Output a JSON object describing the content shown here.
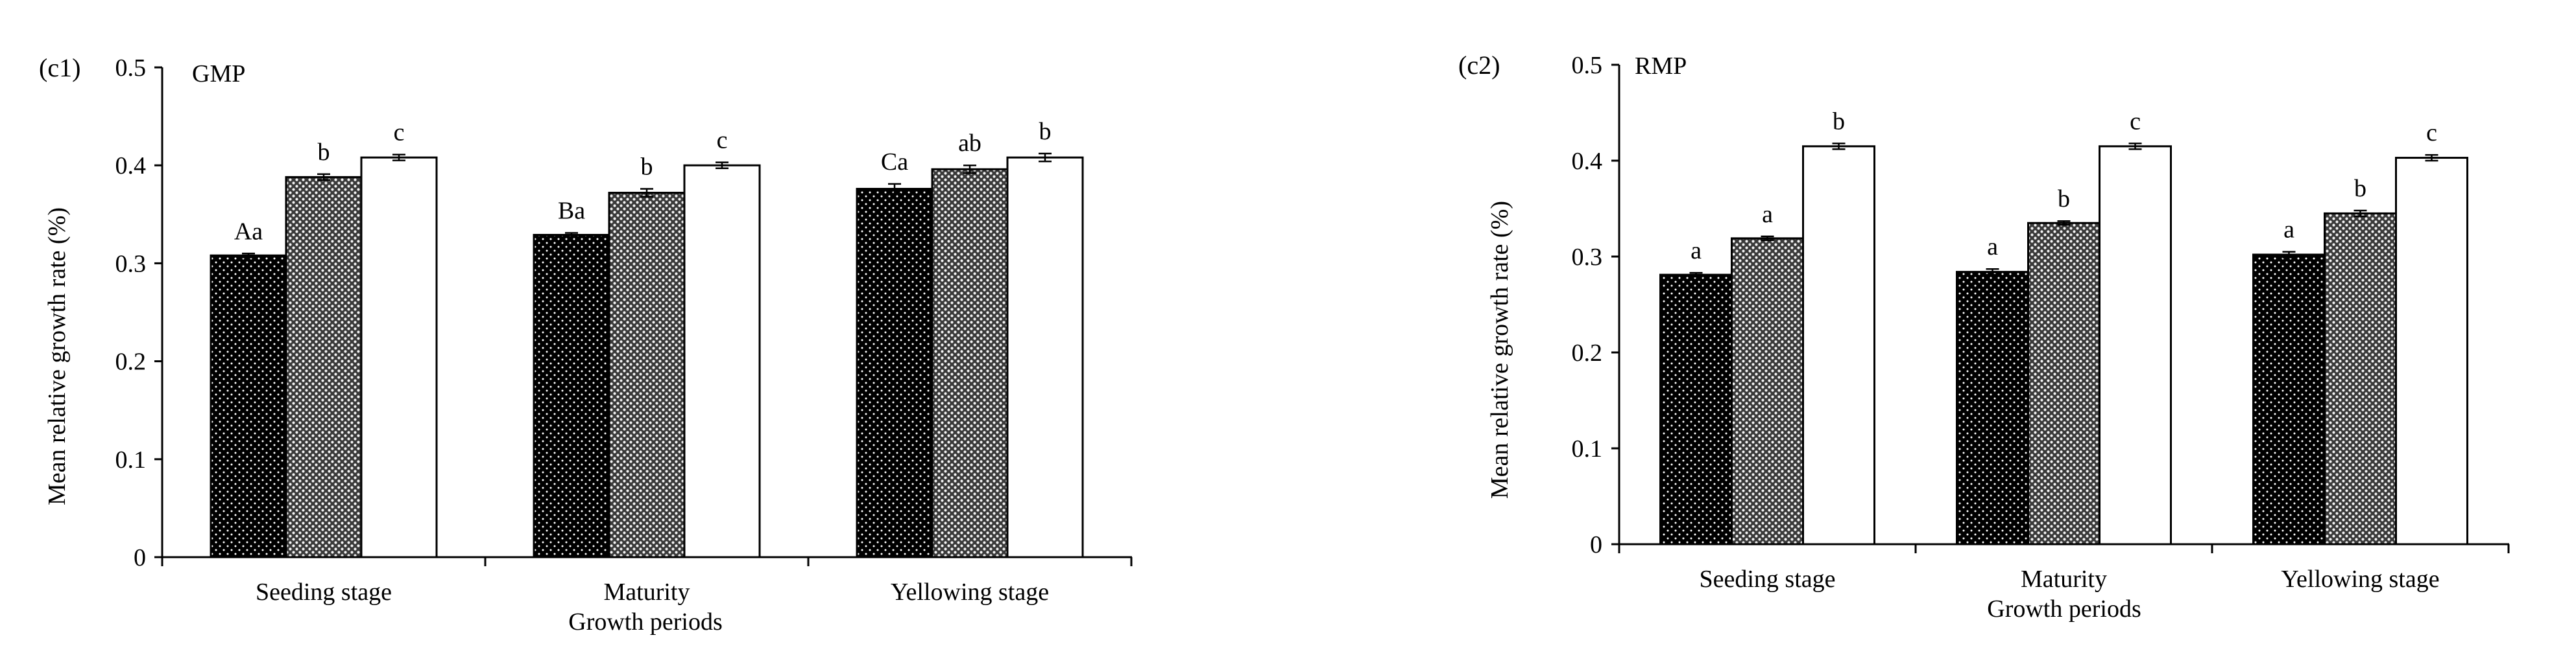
{
  "chart_data": [
    {
      "type": "bar",
      "panel_label": "(c1)",
      "title": "GMP",
      "xlabel": "Growth periods",
      "ylabel": "Mean relative growth rate (%)",
      "ylim": [
        0,
        0.5
      ],
      "yticks": [
        "0",
        "0.1",
        "0.2",
        "0.3",
        "0.4",
        "0.5"
      ],
      "categories": [
        "Seeding stage",
        "Maturity",
        "Yellowing stage"
      ],
      "grid": false,
      "series": [
        {
          "fill": "black-dotted",
          "values": [
            0.308,
            0.329,
            0.376
          ],
          "errors": [
            0.002,
            0.002,
            0.005
          ],
          "labels": [
            "Aa",
            "Ba",
            "Ca"
          ]
        },
        {
          "fill": "grey-dotted",
          "values": [
            0.388,
            0.372,
            0.396
          ],
          "errors": [
            0.003,
            0.004,
            0.004
          ],
          "labels": [
            "b",
            "b",
            "ab"
          ]
        },
        {
          "fill": "white",
          "values": [
            0.408,
            0.4,
            0.408
          ],
          "errors": [
            0.003,
            0.003,
            0.004
          ],
          "labels": [
            "c",
            "c",
            "b"
          ]
        }
      ]
    },
    {
      "type": "bar",
      "panel_label": "(c2)",
      "title": "RMP",
      "xlabel": "Growth periods",
      "ylabel": "Mean relative growth rate (%)",
      "ylim": [
        0,
        0.5
      ],
      "yticks": [
        "0",
        "0.1",
        "0.2",
        "0.3",
        "0.4",
        "0.5"
      ],
      "categories": [
        "Seeding stage",
        "Maturity",
        "Yellowing stage"
      ],
      "grid": false,
      "series": [
        {
          "fill": "black-dotted",
          "values": [
            0.281,
            0.284,
            0.302
          ],
          "errors": [
            0.002,
            0.003,
            0.003
          ],
          "labels": [
            "a",
            "a",
            "a"
          ]
        },
        {
          "fill": "grey-dotted",
          "values": [
            0.319,
            0.335,
            0.345
          ],
          "errors": [
            0.002,
            0.002,
            0.003
          ],
          "labels": [
            "a",
            "b",
            "b"
          ]
        },
        {
          "fill": "white",
          "values": [
            0.415,
            0.415,
            0.403
          ],
          "errors": [
            0.003,
            0.003,
            0.003
          ],
          "labels": [
            "b",
            "c",
            "c"
          ]
        }
      ]
    }
  ]
}
